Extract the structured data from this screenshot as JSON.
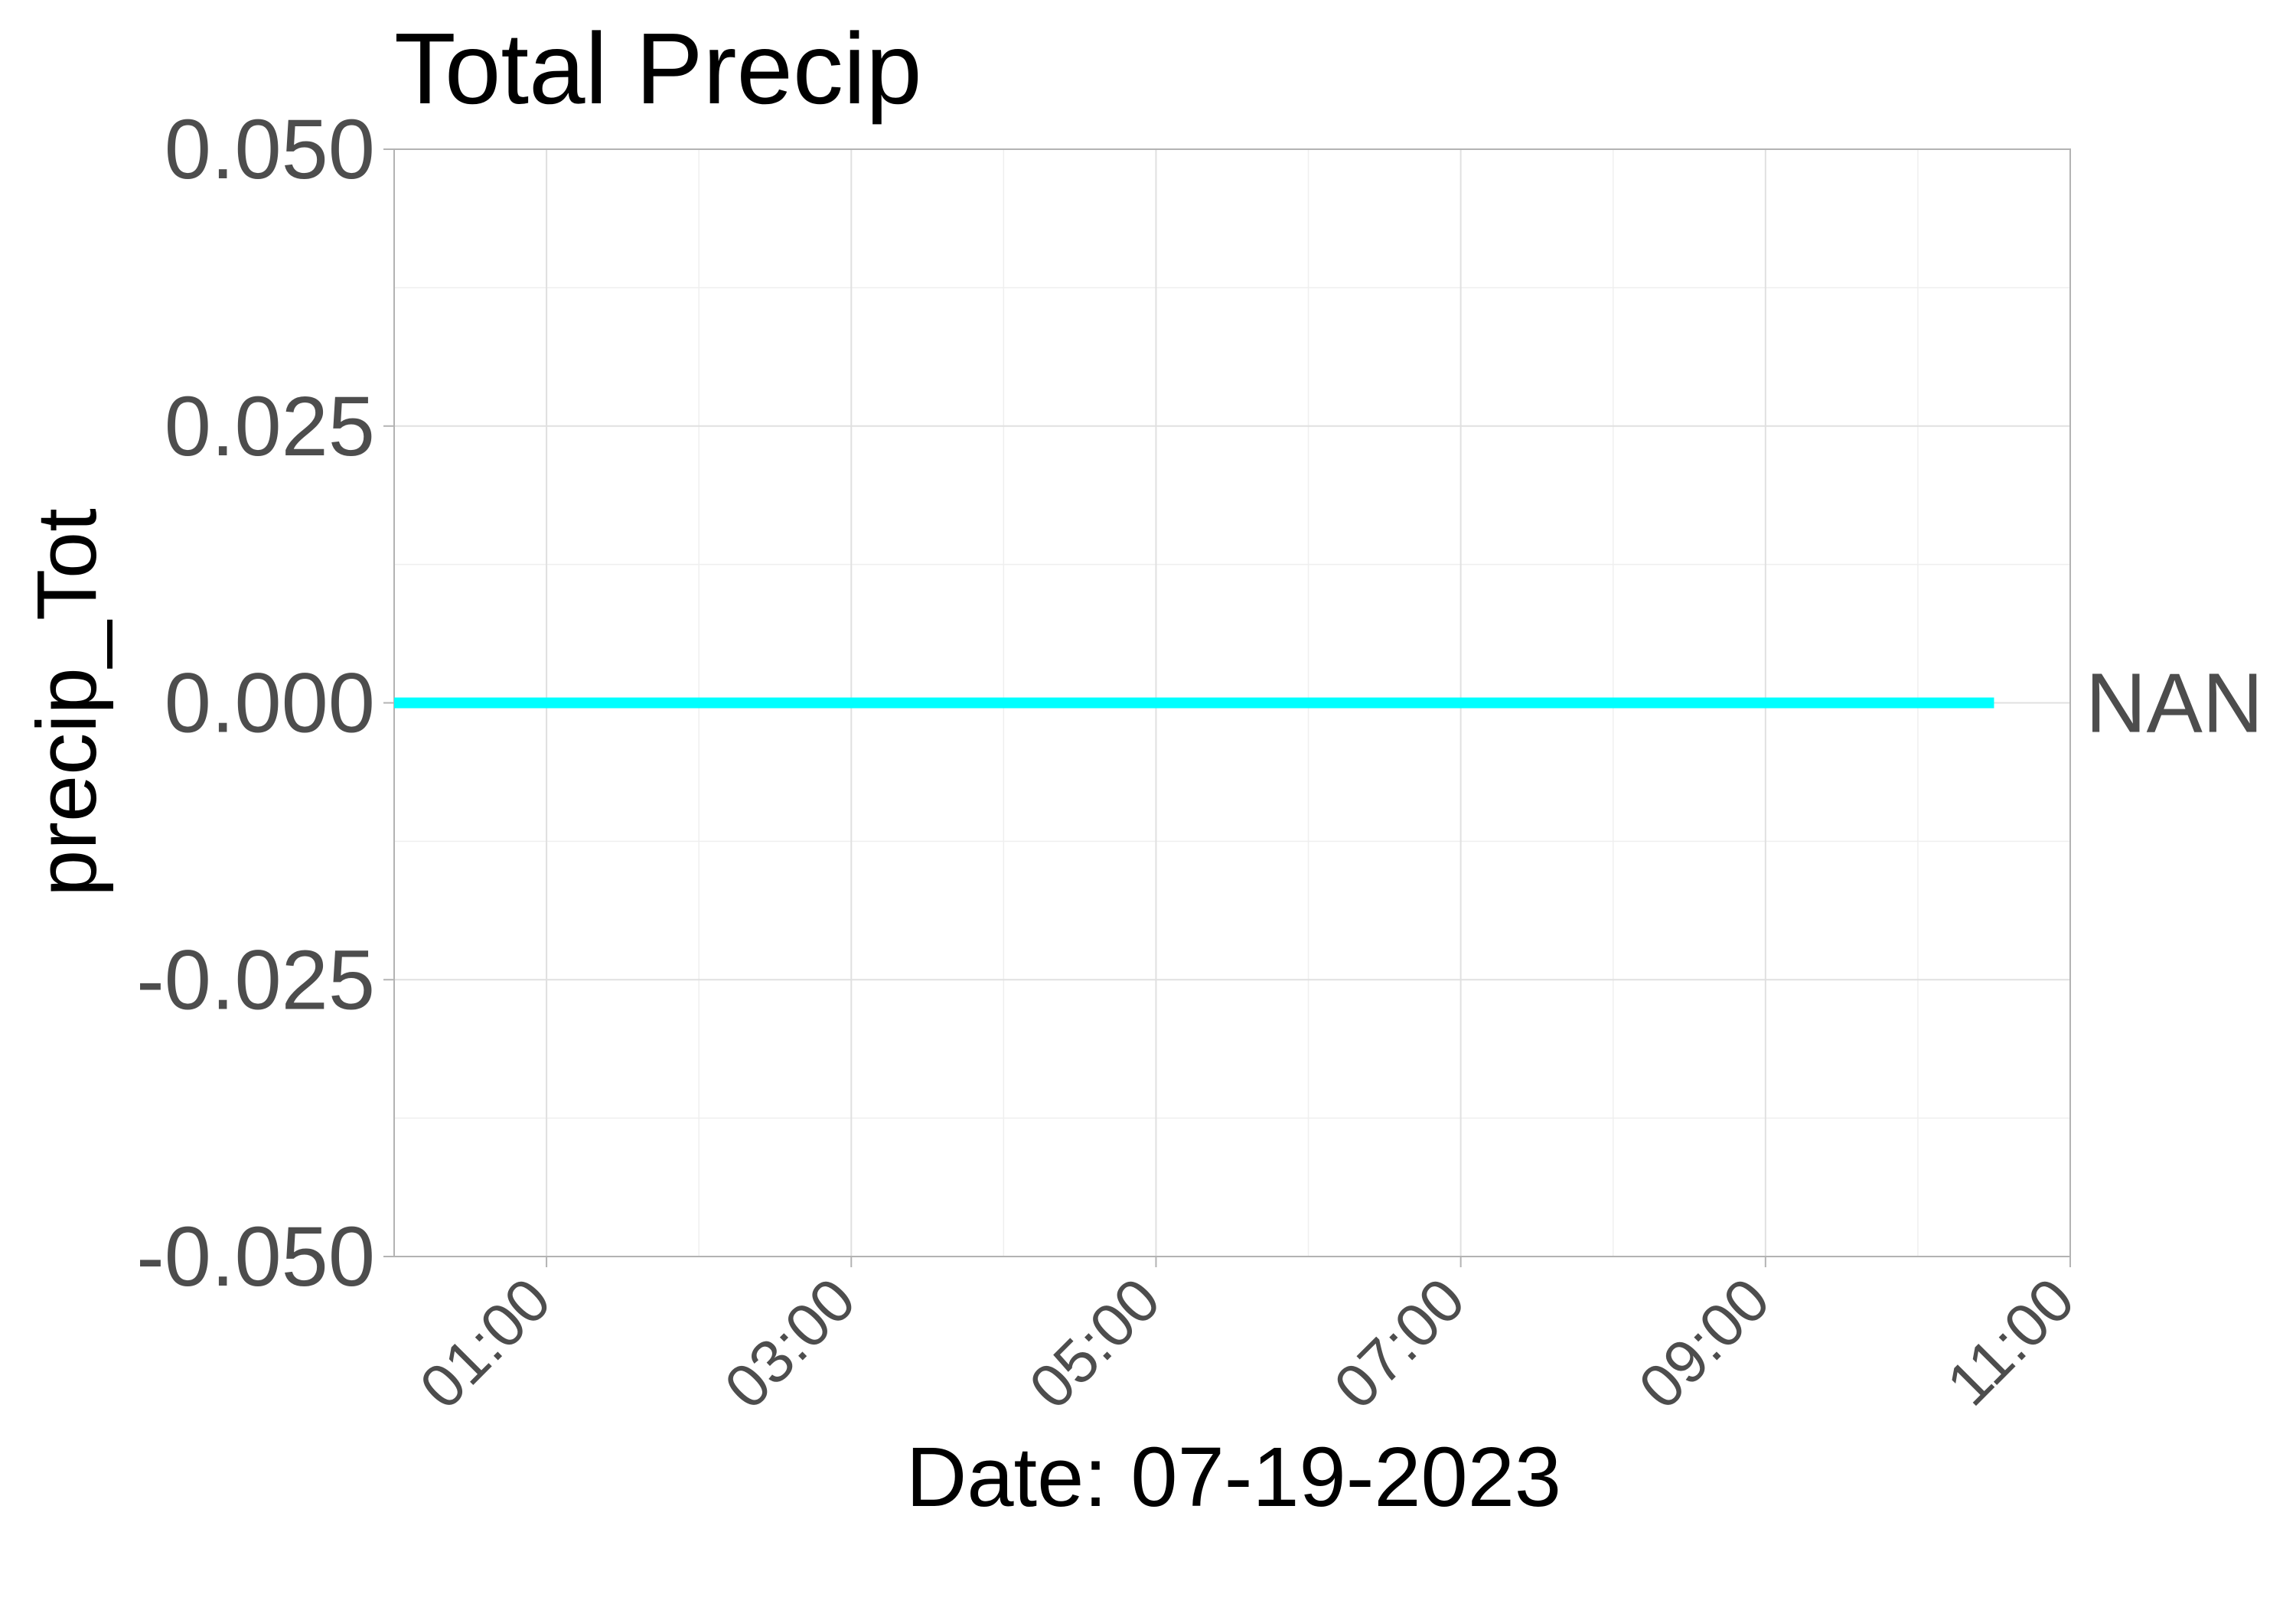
{
  "chart_data": {
    "type": "line",
    "title": "Total Precip",
    "xlabel": "Date: 07-19-2023",
    "ylabel": "precip_Tot",
    "x_range": [
      "00:00",
      "11:00"
    ],
    "x_ticks": [
      "01:00",
      "03:00",
      "05:00",
      "07:00",
      "09:00",
      "11:00"
    ],
    "ylim": [
      -0.05,
      0.05
    ],
    "y_ticks": [
      "0.050",
      "0.025",
      "0.000",
      "-0.025",
      "-0.050"
    ],
    "grid": true,
    "series": [
      {
        "name": "NAN",
        "color": "#00ffff",
        "x": [
          "00:00",
          "10:30"
        ],
        "values": [
          0.0,
          0.0
        ]
      }
    ],
    "series_label_placement": "right, at line end"
  }
}
